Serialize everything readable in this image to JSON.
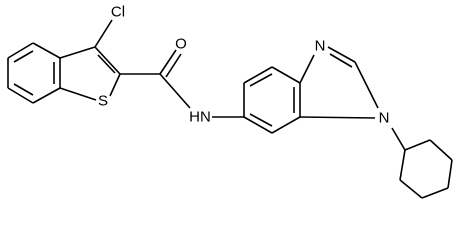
{
  "atoms": [
    {
      "label": "Cl"
    },
    {
      "label": "O"
    },
    {
      "label": "S"
    },
    {
      "label": "HN"
    },
    {
      "label": "N"
    },
    {
      "label": "N"
    }
  ]
}
